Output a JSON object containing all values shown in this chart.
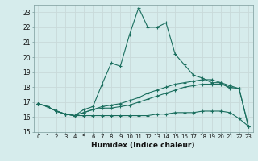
{
  "xlabel": "Humidex (Indice chaleur)",
  "xlim": [
    -0.5,
    23.5
  ],
  "ylim": [
    15,
    23.5
  ],
  "yticks": [
    15,
    16,
    17,
    18,
    19,
    20,
    21,
    22,
    23
  ],
  "xticks": [
    0,
    1,
    2,
    3,
    4,
    5,
    6,
    7,
    8,
    9,
    10,
    11,
    12,
    13,
    14,
    15,
    16,
    17,
    18,
    19,
    20,
    21,
    22,
    23
  ],
  "bg_color": "#d6ecec",
  "grid_color": "#c8dada",
  "line_color": "#1a6e5e",
  "line1_y": [
    16.9,
    16.7,
    16.4,
    16.2,
    16.1,
    16.5,
    16.7,
    18.2,
    19.6,
    19.4,
    21.5,
    23.3,
    22.0,
    22.0,
    22.3,
    20.2,
    19.5,
    18.8,
    18.6,
    18.3,
    18.3,
    17.9,
    17.9,
    null
  ],
  "line2_y": [
    16.9,
    16.7,
    16.4,
    16.2,
    16.1,
    16.3,
    16.5,
    16.7,
    16.8,
    16.9,
    17.1,
    17.3,
    17.6,
    17.8,
    18.0,
    18.2,
    18.3,
    18.4,
    18.5,
    18.5,
    18.3,
    18.1,
    17.9,
    15.4
  ],
  "line3_y": [
    16.9,
    16.7,
    16.4,
    16.2,
    16.1,
    16.3,
    16.5,
    16.6,
    16.6,
    16.7,
    16.8,
    17.0,
    17.2,
    17.4,
    17.6,
    17.8,
    18.0,
    18.1,
    18.2,
    18.2,
    18.2,
    18.0,
    17.9,
    15.4
  ],
  "line4_y": [
    16.9,
    16.7,
    16.4,
    16.2,
    16.1,
    16.1,
    16.1,
    16.1,
    16.1,
    16.1,
    16.1,
    16.1,
    16.1,
    16.2,
    16.2,
    16.3,
    16.3,
    16.3,
    16.4,
    16.4,
    16.4,
    16.3,
    15.9,
    15.4
  ]
}
